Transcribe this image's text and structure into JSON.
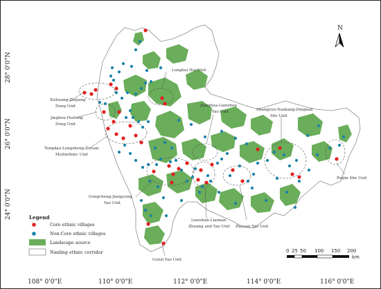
{
  "map": {
    "north_label": "N",
    "lat_labels": [
      "28° 0'0\"N",
      "26° 0'0\"N",
      "24° 0'0\"N"
    ],
    "lon_labels": [
      "108° 0'0\"E",
      "110° 0'0\"E",
      "112° 0'0\"E",
      "114° 0'0\"E",
      "116° 0'0\"E"
    ],
    "units": [
      {
        "lines": [
          "Longhui Hui Unit"
        ]
      },
      {
        "lines": [
          "Xishuang-Zhijiang",
          "Dong Unit"
        ]
      },
      {
        "lines": [
          "Jinghou-Huitong",
          "Dong Unit"
        ]
      },
      {
        "lines": [
          "Jianghua-Lianzhou",
          "Yao Unit"
        ]
      },
      {
        "lines": [
          "Shangyou-Nankang-Dingnan",
          "She Unit"
        ]
      },
      {
        "lines": [
          "Tongdao-Longsheng-Ziyuan",
          "Multiethnic Unit"
        ]
      },
      {
        "lines": [
          "Gongcheng-Jiangyong",
          "Yao Unit"
        ]
      },
      {
        "lines": [
          "Lianshan-Liannan",
          "Zhuang and Yao Unit"
        ]
      },
      {
        "lines": [
          "Ruyuan Yao Unit"
        ]
      },
      {
        "lines": [
          "Ruijin She Unit"
        ]
      },
      {
        "lines": [
          "Cenxi Yao Unit"
        ]
      }
    ],
    "legend": {
      "title": "Legend",
      "core_label": "Core ethnic villages",
      "noncore_label": "Non-Core ethnic villages",
      "landscape_label": "Landscape source",
      "corridor_label": "Nanling ethnic corridor"
    },
    "scale": {
      "ticks": [
        "0",
        "25",
        "50",
        "100",
        "150",
        "200"
      ],
      "unit": "km"
    },
    "colors": {
      "core": "#e02020",
      "noncore": "#1a82a8",
      "landscape": "#6aad5a",
      "outline": "#8a8a8a"
    }
  }
}
